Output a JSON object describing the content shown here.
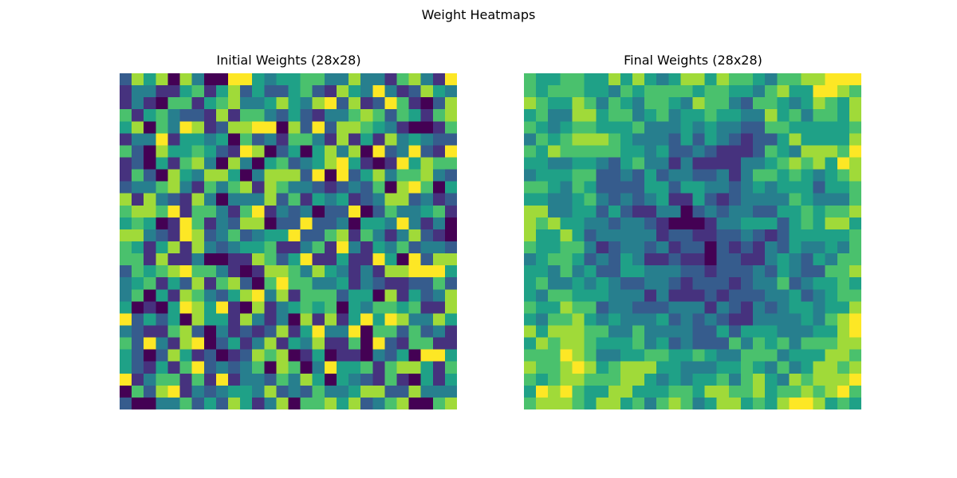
{
  "figure": {
    "title": "Weight Heatmaps"
  },
  "colormap": [
    "#440154",
    "#46327e",
    "#365c8d",
    "#277f8e",
    "#1fa187",
    "#4ac16d",
    "#a0da39",
    "#fde725"
  ],
  "chart_data": [
    {
      "type": "heatmap",
      "title": "Initial Weights (28x28)",
      "rows": 28,
      "cols": 28,
      "seed": 7,
      "smoothness": 0,
      "value_range": [
        0,
        1
      ]
    },
    {
      "type": "heatmap",
      "title": "Final Weights (28x28)",
      "rows": 28,
      "cols": 28,
      "seed": 21,
      "smoothness": 3,
      "value_range": [
        0,
        1
      ]
    }
  ]
}
